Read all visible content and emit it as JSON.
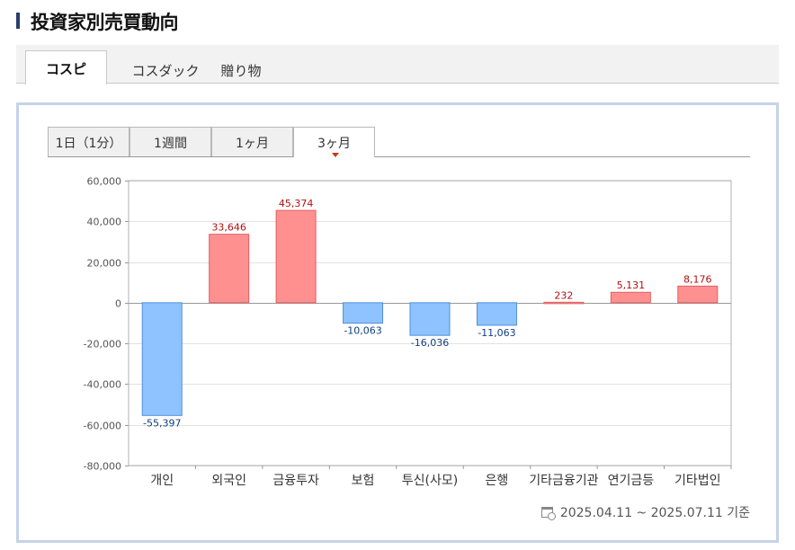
{
  "header": {
    "title": "投資家別売買動向"
  },
  "main_tabs": [
    {
      "label": "コスピ",
      "active": true
    },
    {
      "label": "コスダック",
      "active": false
    },
    {
      "label": "贈り物",
      "active": false
    }
  ],
  "period_tabs": [
    {
      "label": "1日（1分）",
      "active": false
    },
    {
      "label": "1週間",
      "active": false
    },
    {
      "label": "1ヶ月",
      "active": false
    },
    {
      "label": "3ヶ月",
      "active": true
    }
  ],
  "footer": {
    "date_range": "2025.04.11 ~ 2025.07.11 기준"
  },
  "colors": {
    "positive_fill": "#ff9090",
    "positive_stroke": "#e06060",
    "positive_label": "#b01010",
    "negative_fill": "#8ec3ff",
    "negative_stroke": "#4f8fd8",
    "negative_label": "#103f80"
  },
  "chart_data": {
    "type": "bar",
    "categories": [
      "개인",
      "외국인",
      "금융투자",
      "보험",
      "투신(사모)",
      "은행",
      "기타금융기관",
      "연기금등",
      "기타법인"
    ],
    "values": [
      -55397,
      33646,
      45374,
      -10063,
      -16036,
      -11063,
      232,
      5131,
      8176
    ],
    "value_labels": [
      "-55,397",
      "33,646",
      "45,374",
      "-10,063",
      "-16,036",
      "-11,063",
      "232",
      "5,131",
      "8,176"
    ],
    "ylim": [
      -80000,
      60000
    ],
    "yticks": [
      "60,000",
      "40,000",
      "20,000",
      "0",
      "-20,000",
      "-40,000",
      "-60,000",
      "-80,000"
    ],
    "ytick_values": [
      60000,
      40000,
      20000,
      0,
      -20000,
      -40000,
      -60000,
      -80000
    ],
    "grid": true,
    "xlabel": "",
    "ylabel": "",
    "title": ""
  }
}
